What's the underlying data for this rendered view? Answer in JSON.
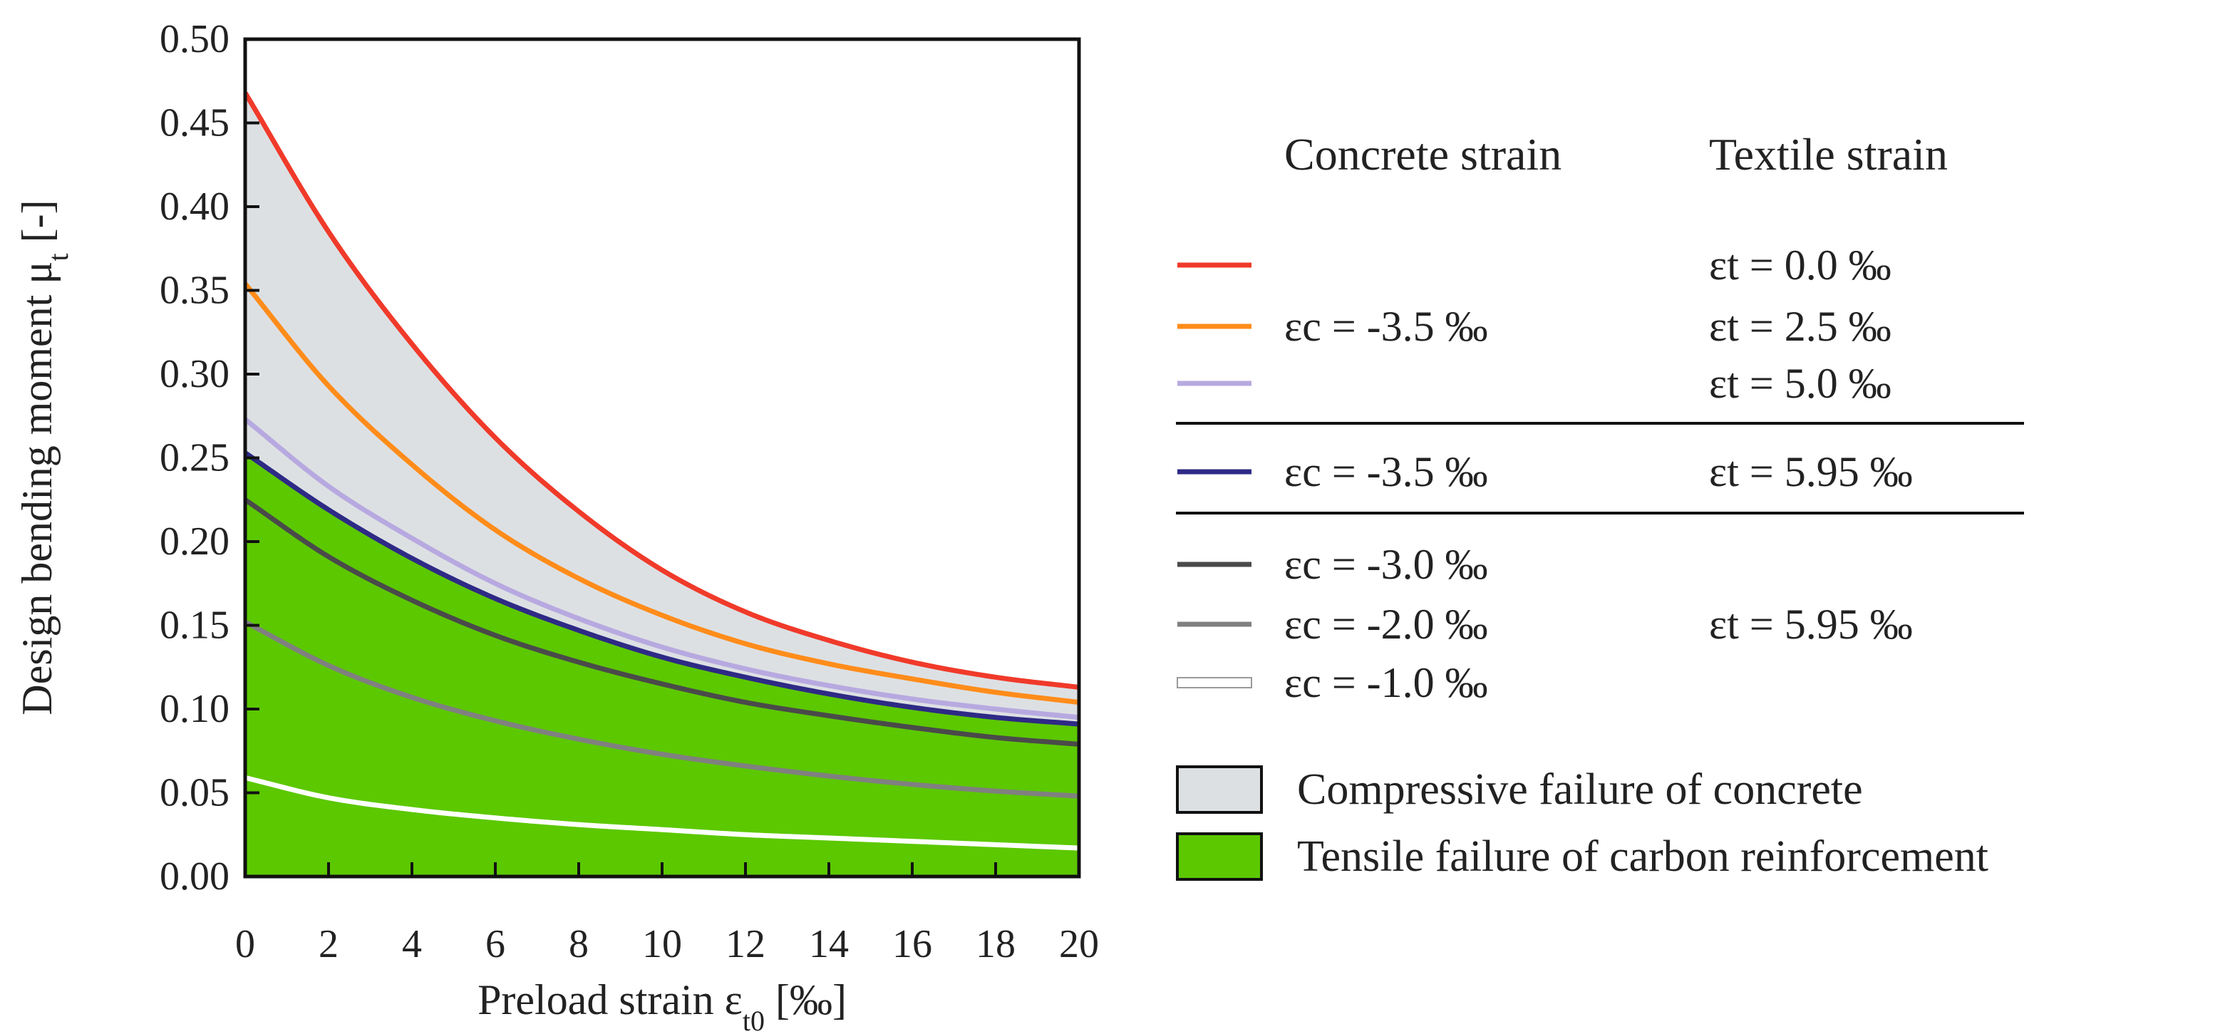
{
  "chart_data": {
    "type": "line",
    "title": "",
    "xlabel": "Preload strain ε",
    "xlabel_sub": "t0",
    "xlabel_unit": " [‰]",
    "ylabel": "Design bending moment μ",
    "ylabel_sub": "t",
    "ylabel_unit": " [-]",
    "xlim": [
      0,
      20
    ],
    "ylim": [
      0,
      0.5
    ],
    "x_ticks": [
      0,
      2,
      4,
      6,
      8,
      10,
      12,
      14,
      16,
      18,
      20
    ],
    "x_tick_labels": [
      "0",
      "2",
      "4",
      "6",
      "8",
      "10",
      "12",
      "14",
      "16",
      "18",
      "20"
    ],
    "y_ticks": [
      0,
      0.05,
      0.1,
      0.15,
      0.2,
      0.25,
      0.3,
      0.35,
      0.4,
      0.45,
      0.5
    ],
    "y_tick_labels": [
      "0.00",
      "0.05",
      "0.10",
      "0.15",
      "0.20",
      "0.25",
      "0.30",
      "0.35",
      "0.40",
      "0.45",
      "0.50"
    ],
    "x": [
      0,
      2,
      4,
      6,
      8,
      10,
      12,
      14,
      16,
      18,
      20
    ],
    "series": [
      {
        "name": "εc = -3.5 ‰, εt = 0.0 ‰",
        "color": "#f03a2a",
        "values": [
          0.468,
          0.385,
          0.318,
          0.262,
          0.218,
          0.183,
          0.158,
          0.141,
          0.128,
          0.119,
          0.113
        ]
      },
      {
        "name": "εc = -3.5 ‰, εt = 2.5 ‰",
        "color": "#ff8c1a",
        "values": [
          0.354,
          0.293,
          0.246,
          0.207,
          0.178,
          0.156,
          0.139,
          0.127,
          0.118,
          0.11,
          0.104
        ]
      },
      {
        "name": "εc = -3.5 ‰, εt = 5.0 ‰",
        "color": "#b7a9e0",
        "values": [
          0.273,
          0.233,
          0.202,
          0.175,
          0.154,
          0.137,
          0.124,
          0.114,
          0.106,
          0.1,
          0.095
        ]
      },
      {
        "name": "εc = -3.5 ‰, εt = 5.95 ‰",
        "color": "#2e2a85",
        "values": [
          0.253,
          0.219,
          0.19,
          0.166,
          0.147,
          0.131,
          0.119,
          0.109,
          0.101,
          0.095,
          0.091
        ]
      },
      {
        "name": "εc = -3.0 ‰, εt = 5.95 ‰",
        "color": "#4a4a4a",
        "values": [
          0.225,
          0.191,
          0.165,
          0.144,
          0.128,
          0.115,
          0.104,
          0.096,
          0.089,
          0.083,
          0.079
        ]
      },
      {
        "name": "εc = -2.0 ‰, εt = 5.95 ‰",
        "color": "#808080",
        "values": [
          0.152,
          0.126,
          0.107,
          0.093,
          0.082,
          0.073,
          0.066,
          0.06,
          0.055,
          0.051,
          0.048
        ]
      },
      {
        "name": "εc = -1.0 ‰, εt = 5.95 ‰",
        "color": "#ffffff",
        "values": [
          0.059,
          0.047,
          0.04,
          0.035,
          0.031,
          0.028,
          0.025,
          0.023,
          0.021,
          0.019,
          0.017
        ]
      }
    ],
    "regions": [
      {
        "label": "Compressive failure of concrete",
        "color": "#dde0e3",
        "upper_series": 0,
        "lower_series": 3
      },
      {
        "label": "Tensile failure of carbon reinforcement",
        "color": "#5cc800",
        "upper_series": 3,
        "lower_series": null
      }
    ],
    "legend": {
      "header_concrete": "Concrete strain",
      "header_textile": "Textile strain",
      "rows": [
        {
          "series": 0,
          "concrete": "",
          "textile": "εt = 0.0    ‰"
        },
        {
          "series": 1,
          "concrete": "εc = -3.5 ‰",
          "textile": "εt = 2.5    ‰"
        },
        {
          "series": 2,
          "concrete": "",
          "textile": "εt = 5.0    ‰"
        },
        {
          "series": 3,
          "concrete": "εc = -3.5 ‰",
          "textile": "εt = 5.95 ‰"
        },
        {
          "series": 4,
          "concrete": "εc = -3.0 ‰",
          "textile": ""
        },
        {
          "series": 5,
          "concrete": "εc = -2.0 ‰",
          "textile": "εt = 5.95 ‰"
        },
        {
          "series": 6,
          "concrete": "εc = -1.0 ‰",
          "textile": ""
        }
      ]
    }
  }
}
